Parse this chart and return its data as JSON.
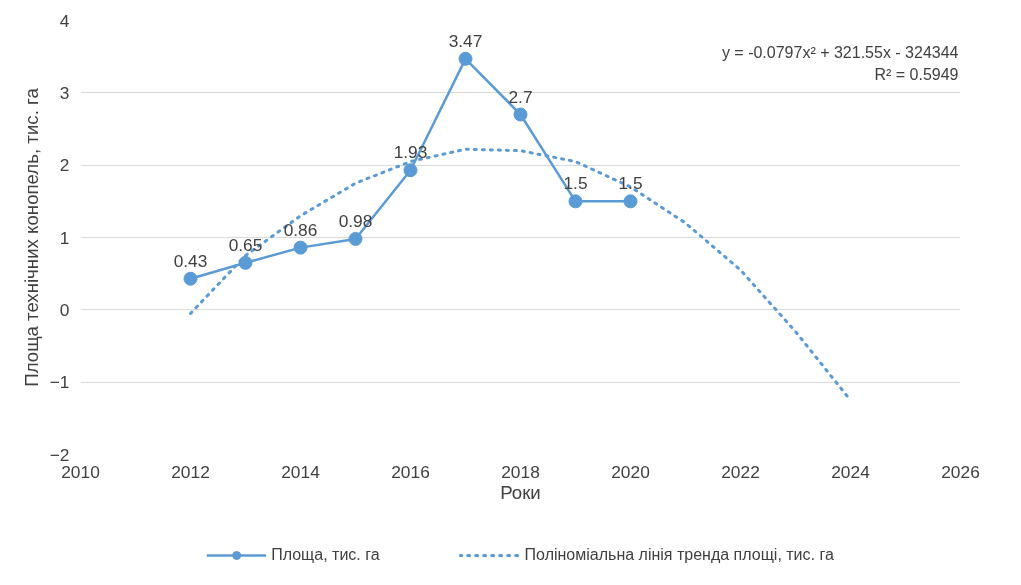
{
  "chart_data": {
    "type": "line",
    "xlabel": "Роки",
    "ylabel": "Площа технічних конопель, тис. га",
    "xlim": [
      2010,
      2026
    ],
    "xticks": [
      2010,
      2012,
      2014,
      2016,
      2018,
      2020,
      2022,
      2024,
      2026
    ],
    "ylim": [
      -2,
      4
    ],
    "yticks": [
      -2,
      -1,
      0,
      1,
      2,
      3,
      4
    ],
    "grid": "y",
    "legend": "bottom",
    "annotations": [
      "y = -0.0797x² + 321.55x - 324344",
      "R² = 0.5949"
    ],
    "series": [
      {
        "name": "Площа, тис. га",
        "color": "#5b9bd5",
        "marker": "circle",
        "line_style": "solid",
        "data_labels": true,
        "x": [
          2012,
          2013,
          2014,
          2015,
          2016,
          2017,
          2018,
          2019,
          2020
        ],
        "values": [
          0.43,
          0.65,
          0.86,
          0.98,
          1.93,
          3.47,
          2.7,
          1.5,
          1.5
        ]
      },
      {
        "name": "Поліноміальна лінія тренда площі, тис. га",
        "color": "#5b9bd5",
        "marker": "none",
        "line_style": "dotted",
        "x": [
          2012,
          2013,
          2014,
          2015,
          2016,
          2017,
          2018,
          2019,
          2020,
          2021,
          2022,
          2023,
          2024
        ],
        "values": [
          -0.05,
          0.75,
          1.3,
          1.75,
          2.05,
          2.22,
          2.2,
          2.05,
          1.7,
          1.2,
          0.55,
          -0.3,
          -1.25
        ]
      }
    ]
  }
}
